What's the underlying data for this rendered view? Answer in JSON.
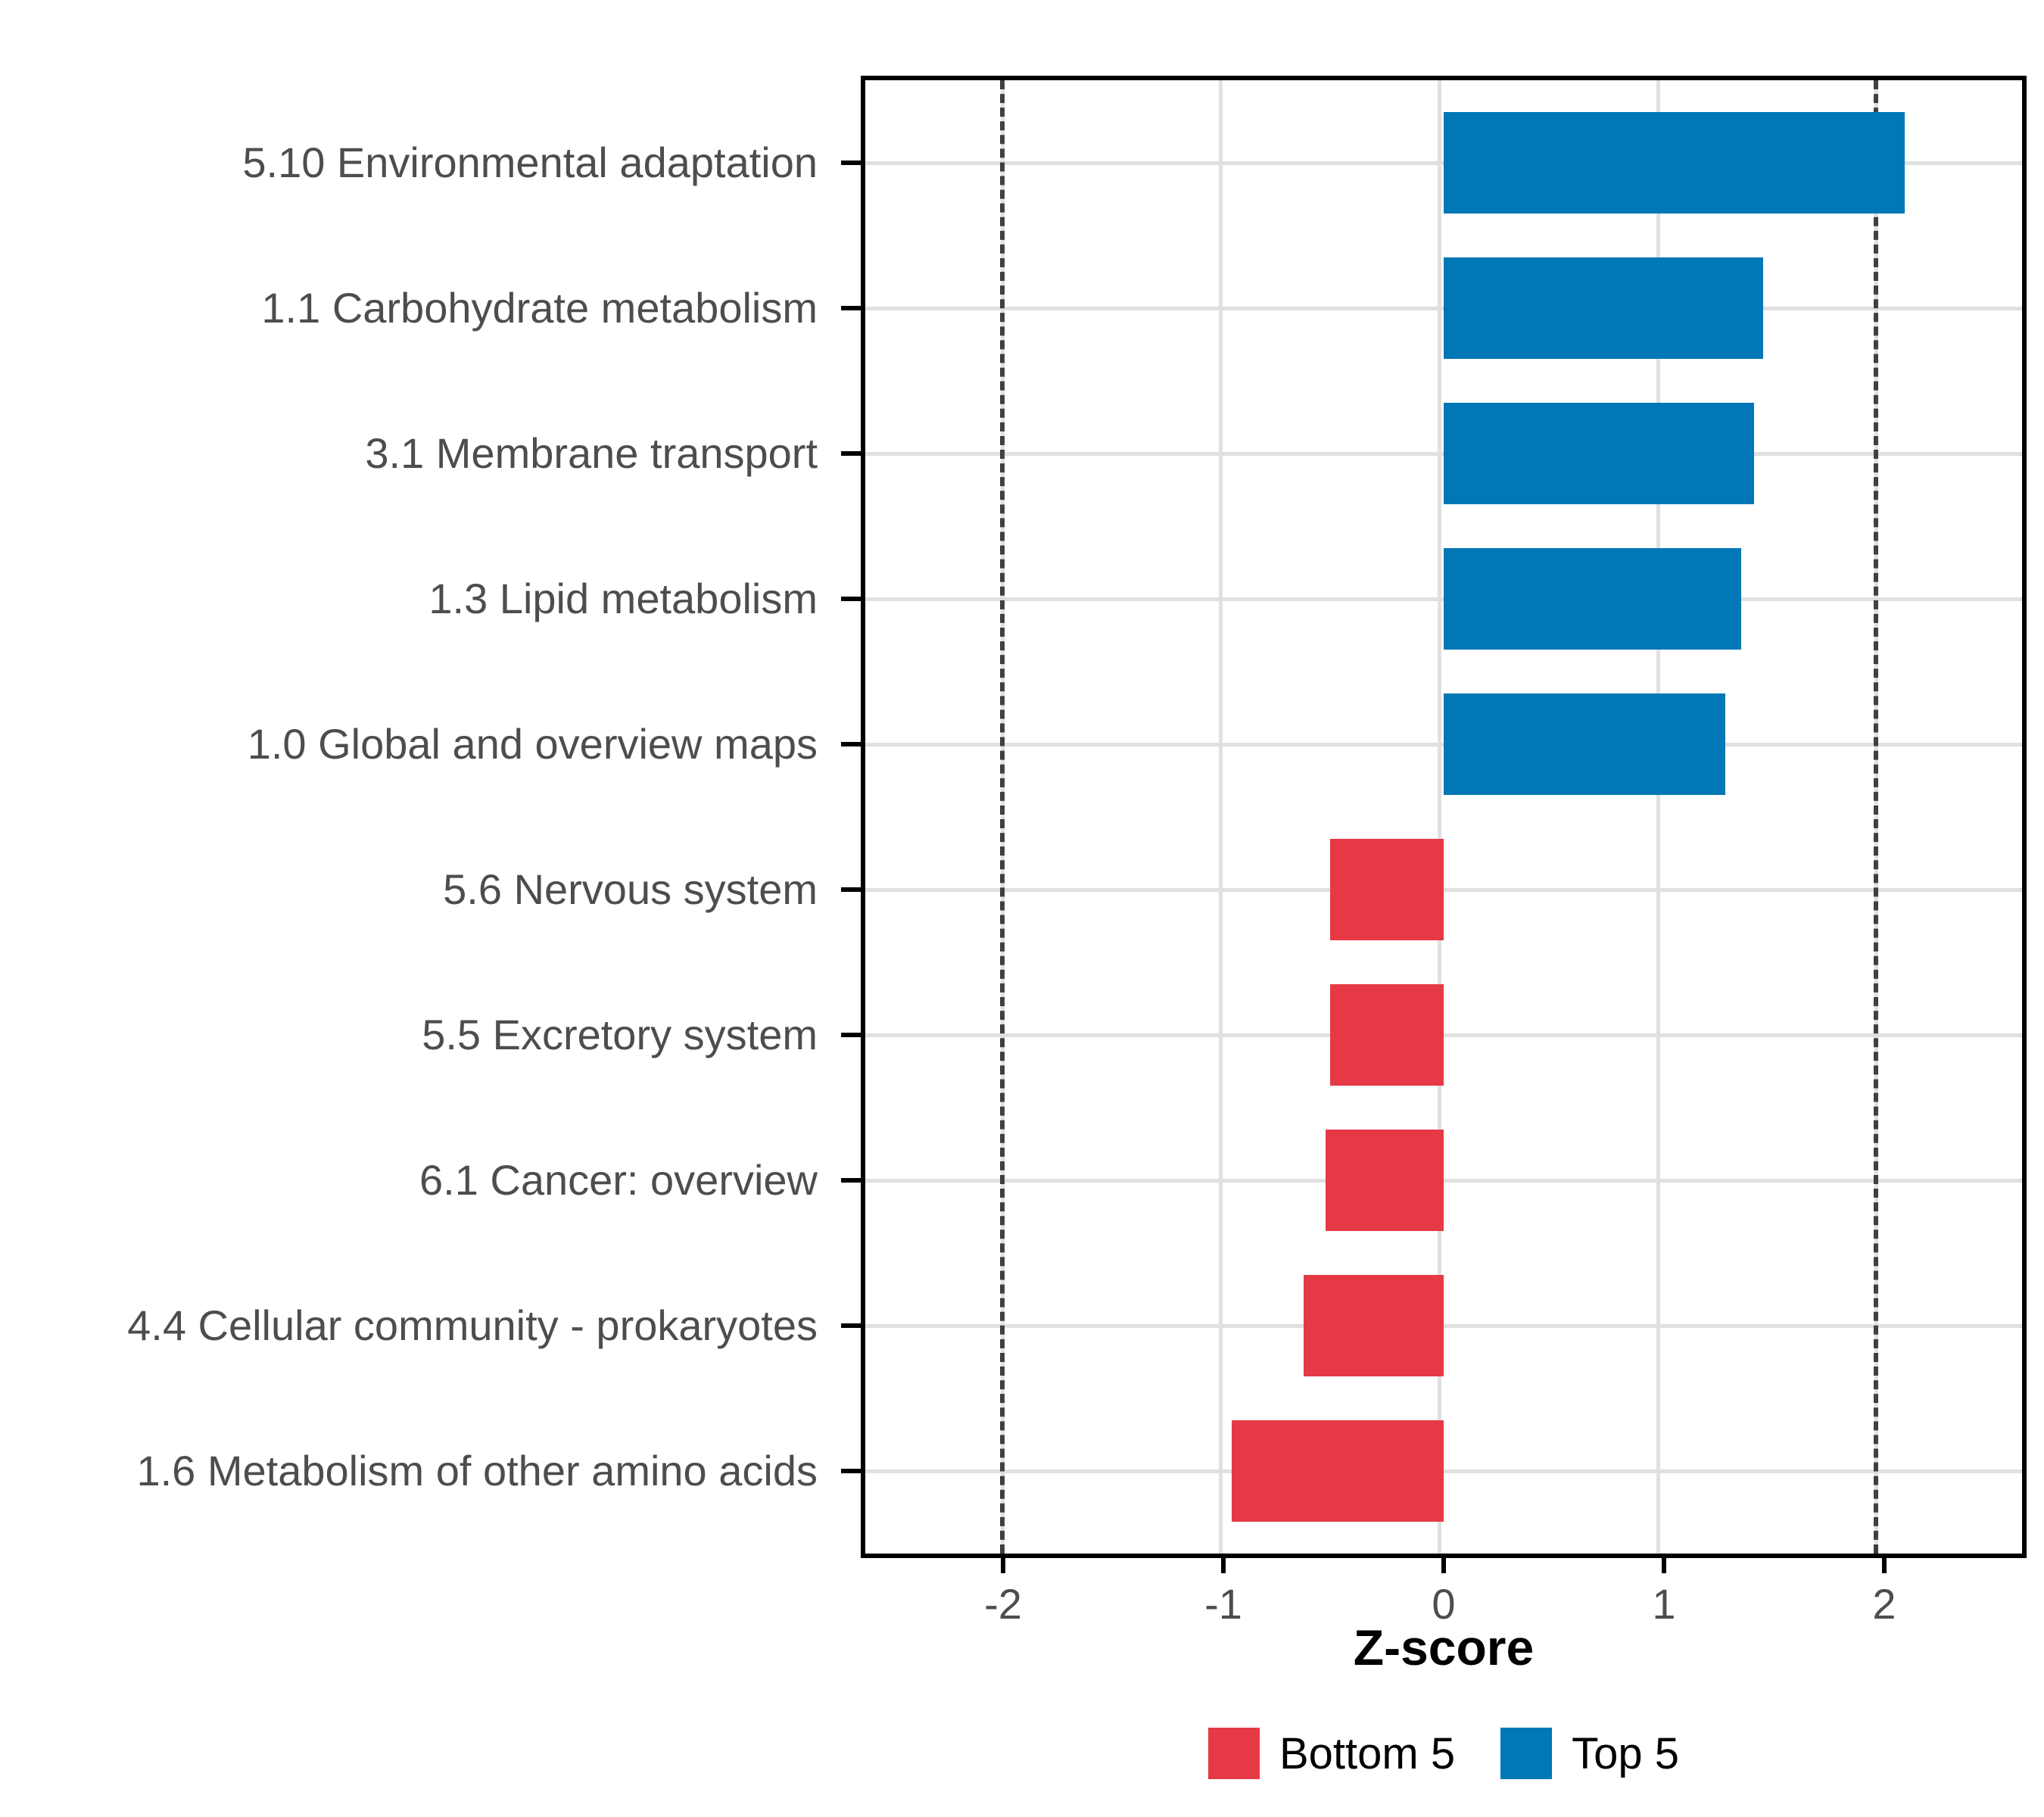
{
  "chart_data": {
    "type": "bar",
    "orientation": "horizontal",
    "xlabel": "Z-score",
    "ylabel": "",
    "categories": [
      "5.10 Environmental adaptation",
      "1.1 Carbohydrate metabolism",
      "3.1 Membrane transport",
      "1.3 Lipid metabolism",
      "1.0 Global and overview maps",
      "5.6 Nervous system",
      "5.5 Excretory system",
      "6.1 Cancer: overview",
      "4.4 Cellular community - prokaryotes",
      "1.6 Metabolism of other amino acids"
    ],
    "values": [
      2.11,
      1.46,
      1.42,
      1.36,
      1.29,
      -0.52,
      -0.52,
      -0.54,
      -0.64,
      -0.97
    ],
    "groups": [
      "Top 5",
      "Top 5",
      "Top 5",
      "Top 5",
      "Top 5",
      "Bottom 5",
      "Bottom 5",
      "Bottom 5",
      "Bottom 5",
      "Bottom 5"
    ],
    "x_ticks": [
      "-2",
      "-1",
      "0",
      "1",
      "2"
    ],
    "x_tick_values": [
      -2,
      -1,
      0,
      1,
      2
    ],
    "xlim": [
      -2.646,
      2.646
    ],
    "reference_lines": [
      -2,
      2
    ],
    "grid": true,
    "legend_position": "bottom",
    "bar_band_fraction": 0.7
  },
  "axis": {
    "x_title": "Z-score"
  },
  "legend": {
    "items": [
      {
        "label": "Bottom 5",
        "color": "#E63946"
      },
      {
        "label": "Top 5",
        "color": "#0077B6"
      }
    ]
  },
  "style": {
    "top5_color": "#0077B6",
    "bottom5_color": "#E63946",
    "grid_color": "#E0E0E0",
    "refline_color": "#404040",
    "axis_text_color": "#4D4D4D",
    "axis_line_color": "#000000"
  }
}
